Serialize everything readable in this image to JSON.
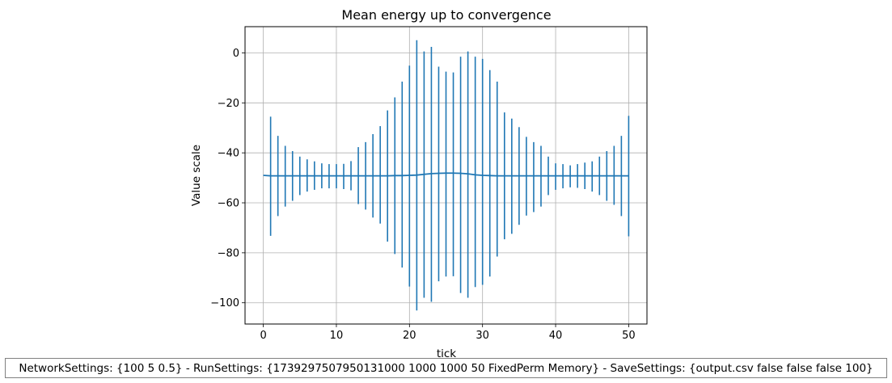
{
  "chart_data": {
    "type": "line",
    "title": "Mean energy up to convergence",
    "xlabel": "tick",
    "ylabel": "Value scale",
    "xlim": [
      -2.5,
      52.5
    ],
    "ylim": [
      -108.5,
      10.5
    ],
    "xticks": [
      0,
      10,
      20,
      30,
      40,
      50
    ],
    "yticks": [
      0,
      -20,
      -40,
      -60,
      -80,
      -100
    ],
    "grid": true,
    "color": "#1f77b4",
    "series": [
      {
        "x": [
          0,
          1,
          2,
          3,
          4,
          5,
          6,
          7,
          8,
          9,
          10,
          11,
          12,
          13,
          14,
          15,
          16,
          17,
          18,
          19,
          20,
          21,
          22,
          23,
          24,
          25,
          26,
          27,
          28,
          29,
          30,
          31,
          32,
          33,
          34,
          35,
          36,
          37,
          38,
          39,
          40,
          41,
          42,
          43,
          44,
          45,
          46,
          47,
          48,
          49,
          50
        ],
        "y": [
          -49.0,
          -49.2,
          -49.2,
          -49.2,
          -49.2,
          -49.2,
          -49.2,
          -49.2,
          -49.2,
          -49.2,
          -49.2,
          -49.2,
          -49.2,
          -49.2,
          -49.2,
          -49.2,
          -49.2,
          -49.2,
          -49.1,
          -49.1,
          -49.0,
          -48.9,
          -48.6,
          -48.3,
          -48.2,
          -48.1,
          -48.1,
          -48.2,
          -48.4,
          -48.8,
          -49.0,
          -49.1,
          -49.2,
          -49.2,
          -49.2,
          -49.2,
          -49.2,
          -49.2,
          -49.2,
          -49.2,
          -49.2,
          -49.2,
          -49.2,
          -49.2,
          -49.2,
          -49.2,
          -49.2,
          -49.2,
          -49.2,
          -49.2,
          -49.2
        ],
        "err_upper": [
          null,
          -25.5,
          -33.2,
          -37.2,
          -39.3,
          -41.5,
          -42.6,
          -43.4,
          -44.2,
          -44.5,
          -44.5,
          -44.4,
          -43.3,
          -37.7,
          -35.7,
          -32.5,
          -29.3,
          -23.0,
          -17.8,
          -11.5,
          -5.1,
          5.1,
          0.6,
          2.4,
          -5.5,
          -7.5,
          -7.8,
          -1.5,
          0.6,
          -1.5,
          -2.4,
          -6.9,
          -11.5,
          -23.8,
          -26.3,
          -29.7,
          -33.6,
          -35.7,
          -37.2,
          -41.5,
          -44.2,
          -44.5,
          -45.0,
          -44.5,
          -43.9,
          -43.4,
          -41.5,
          -39.3,
          -37.2,
          -33.2,
          -25.2
        ],
        "err_lower": [
          null,
          -73.2,
          -65.3,
          -61.5,
          -59.2,
          -56.9,
          -55.5,
          -54.8,
          -54.2,
          -54.2,
          -54.2,
          -54.5,
          -55.0,
          -60.5,
          -62.7,
          -65.9,
          -68.3,
          -75.5,
          -80.5,
          -85.9,
          -93.5,
          -103.1,
          -98.0,
          -99.6,
          -91.4,
          -89.5,
          -89.4,
          -96.1,
          -98.0,
          -93.7,
          -92.8,
          -89.5,
          -81.5,
          -74.6,
          -72.4,
          -68.8,
          -65.1,
          -63.7,
          -61.5,
          -56.9,
          -54.8,
          -54.2,
          -53.8,
          -54.0,
          -54.5,
          -55.5,
          -56.9,
          -59.2,
          -60.8,
          -65.3,
          -73.4
        ]
      }
    ]
  },
  "footer": {
    "text": "NetworkSettings: {100 5 0.5} - RunSettings: {1739297507950131000 1000 1000 50 FixedPerm Memory} - SaveSettings: {output.csv false false false 100}"
  }
}
